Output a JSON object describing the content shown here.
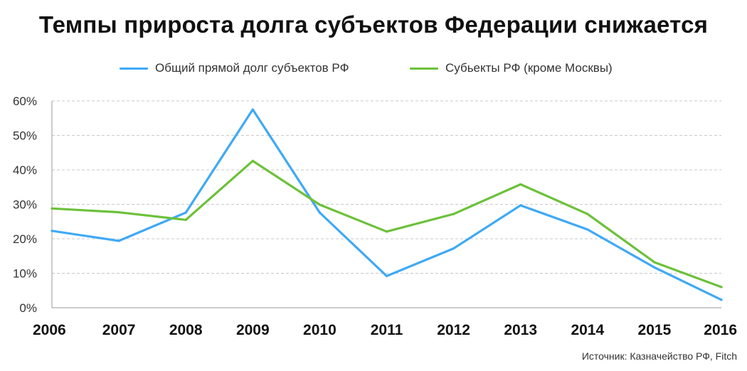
{
  "title": "Темпы прироста долга субъектов Федерации снижается",
  "source": "Источник: Казначейство РФ, Fitch",
  "chart_data": {
    "type": "line",
    "title": "Темпы прироста долга субъектов Федерации снижается",
    "xlabel": "",
    "ylabel": "",
    "categories": [
      "2006",
      "2007",
      "2008",
      "2009",
      "2010",
      "2011",
      "2012",
      "2013",
      "2014",
      "2015",
      "2016"
    ],
    "ylim": [
      0,
      60
    ],
    "yticks": [
      "0%",
      "10%",
      "20%",
      "30%",
      "40%",
      "50%",
      "60%"
    ],
    "grid": true,
    "legend_position": "top",
    "series": [
      {
        "name": "Общий прямой долг субъектов РФ",
        "color": "#3fa9f5",
        "values": [
          22.3,
          19.4,
          27.6,
          57.5,
          27.6,
          9.2,
          17.2,
          29.7,
          22.7,
          11.7,
          2.3
        ]
      },
      {
        "name": "Субьекты РФ (кроме Москвы)",
        "color": "#6cc13a",
        "values": [
          28.8,
          27.7,
          25.5,
          42.6,
          29.9,
          22.1,
          27.2,
          35.8,
          27.2,
          13.2,
          6.0
        ]
      }
    ]
  }
}
